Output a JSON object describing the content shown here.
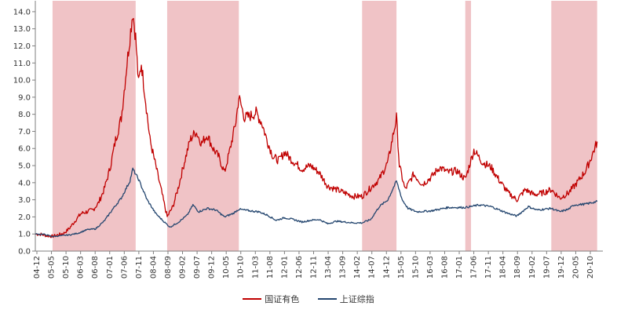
{
  "chart_data": {
    "type": "line",
    "title": "",
    "xlabel": "",
    "ylabel": "",
    "ylim": [
      0,
      14.5
    ],
    "yticks": [
      0.0,
      1.0,
      2.0,
      3.0,
      4.0,
      5.0,
      6.0,
      7.0,
      8.0,
      9.0,
      10.0,
      11.0,
      12.0,
      13.0,
      14.0
    ],
    "ytick_labels": [
      "0.0",
      "1.0",
      "2.0",
      "3.0",
      "4.0",
      "5.0",
      "6.0",
      "7.0",
      "8.0",
      "9.0",
      "10.0",
      "11.0",
      "12.0",
      "13.0",
      "14.0"
    ],
    "xlim": [
      "2004-12",
      "2021-06"
    ],
    "xtick_labels": [
      "04-12",
      "05-05",
      "05-10",
      "06-03",
      "06-08",
      "07-01",
      "07-06",
      "07-11",
      "08-04",
      "08-09",
      "09-02",
      "09-07",
      "09-12",
      "10-05",
      "10-10",
      "11-03",
      "11-08",
      "12-01",
      "12-06",
      "12-11",
      "13-04",
      "13-09",
      "14-02",
      "14-07",
      "14-12",
      "15-05",
      "15-10",
      "16-03",
      "16-08",
      "17-01",
      "17-06",
      "17-11",
      "18-04",
      "18-09",
      "19-02",
      "19-07",
      "19-12",
      "20-05",
      "20-10"
    ],
    "legend_position": "bottom",
    "grid": false,
    "shaded_periods": [
      {
        "start": "2005-06",
        "end": "2007-11"
      },
      {
        "start": "2008-10",
        "end": "2010-11"
      },
      {
        "start": "2014-06",
        "end": "2015-06"
      },
      {
        "start": "2017-06",
        "end": "2017-08"
      },
      {
        "start": "2019-12",
        "end": "2021-04"
      }
    ],
    "series": [
      {
        "name": "国证有色",
        "color": "#c00000",
        "points": [
          [
            "2004-12",
            1.0
          ],
          [
            "2005-02",
            0.98
          ],
          [
            "2005-04",
            0.9
          ],
          [
            "2005-06",
            0.86
          ],
          [
            "2005-08",
            0.95
          ],
          [
            "2005-10",
            1.05
          ],
          [
            "2005-12",
            1.35
          ],
          [
            "2006-02",
            1.8
          ],
          [
            "2006-04",
            2.2
          ],
          [
            "2006-06",
            2.3
          ],
          [
            "2006-08",
            2.4
          ],
          [
            "2006-10",
            2.8
          ],
          [
            "2006-12",
            3.6
          ],
          [
            "2007-02",
            4.8
          ],
          [
            "2007-04",
            6.5
          ],
          [
            "2007-06",
            7.8
          ],
          [
            "2007-08",
            11.0
          ],
          [
            "2007-10",
            14.0
          ],
          [
            "2007-11",
            12.5
          ],
          [
            "2007-12",
            9.8
          ],
          [
            "2008-01",
            11.0
          ],
          [
            "2008-02",
            9.5
          ],
          [
            "2008-03",
            8.0
          ],
          [
            "2008-04",
            6.5
          ],
          [
            "2008-06",
            5.0
          ],
          [
            "2008-08",
            3.5
          ],
          [
            "2008-10",
            2.0
          ],
          [
            "2008-12",
            2.6
          ],
          [
            "2009-02",
            3.8
          ],
          [
            "2009-04",
            5.2
          ],
          [
            "2009-06",
            6.5
          ],
          [
            "2009-08",
            7.0
          ],
          [
            "2009-10",
            6.3
          ],
          [
            "2009-12",
            6.8
          ],
          [
            "2010-02",
            6.0
          ],
          [
            "2010-04",
            5.5
          ],
          [
            "2010-06",
            4.6
          ],
          [
            "2010-08",
            6.0
          ],
          [
            "2010-10",
            7.6
          ],
          [
            "2010-11",
            9.0
          ],
          [
            "2011-01",
            7.8
          ],
          [
            "2011-03",
            7.9
          ],
          [
            "2011-05",
            8.1
          ],
          [
            "2011-07",
            7.5
          ],
          [
            "2011-09",
            6.4
          ],
          [
            "2011-11",
            5.5
          ],
          [
            "2012-01",
            5.3
          ],
          [
            "2012-03",
            5.8
          ],
          [
            "2012-05",
            5.4
          ],
          [
            "2012-07",
            5.1
          ],
          [
            "2012-09",
            4.8
          ],
          [
            "2012-12",
            5.0
          ],
          [
            "2013-03",
            4.6
          ],
          [
            "2013-06",
            3.8
          ],
          [
            "2013-09",
            3.6
          ],
          [
            "2013-12",
            3.4
          ],
          [
            "2014-03",
            3.2
          ],
          [
            "2014-06",
            3.2
          ],
          [
            "2014-09",
            3.7
          ],
          [
            "2014-12",
            4.2
          ],
          [
            "2015-03",
            5.2
          ],
          [
            "2015-06",
            7.8
          ],
          [
            "2015-07",
            5.0
          ],
          [
            "2015-09",
            3.6
          ],
          [
            "2015-12",
            4.5
          ],
          [
            "2016-03",
            3.9
          ],
          [
            "2016-06",
            4.3
          ],
          [
            "2016-09",
            4.9
          ],
          [
            "2016-12",
            4.6
          ],
          [
            "2017-03",
            4.7
          ],
          [
            "2017-06",
            4.2
          ],
          [
            "2017-09",
            5.9
          ],
          [
            "2017-12",
            5.2
          ],
          [
            "2018-03",
            4.9
          ],
          [
            "2018-06",
            4.1
          ],
          [
            "2018-09",
            3.4
          ],
          [
            "2018-12",
            3.0
          ],
          [
            "2019-03",
            3.6
          ],
          [
            "2019-06",
            3.3
          ],
          [
            "2019-09",
            3.4
          ],
          [
            "2019-12",
            3.6
          ],
          [
            "2020-03",
            3.1
          ],
          [
            "2020-06",
            3.4
          ],
          [
            "2020-09",
            4.0
          ],
          [
            "2020-12",
            4.7
          ],
          [
            "2021-02",
            5.5
          ],
          [
            "2021-04",
            6.4
          ]
        ]
      },
      {
        "name": "上证综指",
        "color": "#24466f",
        "points": [
          [
            "2004-12",
            1.0
          ],
          [
            "2005-03",
            0.98
          ],
          [
            "2005-06",
            0.85
          ],
          [
            "2005-09",
            0.9
          ],
          [
            "2005-12",
            0.95
          ],
          [
            "2006-03",
            1.05
          ],
          [
            "2006-06",
            1.25
          ],
          [
            "2006-09",
            1.3
          ],
          [
            "2006-12",
            1.75
          ],
          [
            "2007-03",
            2.45
          ],
          [
            "2007-06",
            3.1
          ],
          [
            "2007-09",
            4.1
          ],
          [
            "2007-10",
            4.8
          ],
          [
            "2007-12",
            4.2
          ],
          [
            "2008-03",
            3.0
          ],
          [
            "2008-06",
            2.2
          ],
          [
            "2008-09",
            1.7
          ],
          [
            "2008-11",
            1.4
          ],
          [
            "2009-02",
            1.7
          ],
          [
            "2009-05",
            2.1
          ],
          [
            "2009-07",
            2.7
          ],
          [
            "2009-09",
            2.3
          ],
          [
            "2009-12",
            2.5
          ],
          [
            "2010-03",
            2.4
          ],
          [
            "2010-06",
            2.0
          ],
          [
            "2010-09",
            2.2
          ],
          [
            "2010-11",
            2.45
          ],
          [
            "2011-03",
            2.35
          ],
          [
            "2011-06",
            2.3
          ],
          [
            "2011-09",
            2.1
          ],
          [
            "2011-12",
            1.8
          ],
          [
            "2012-03",
            1.95
          ],
          [
            "2012-06",
            1.85
          ],
          [
            "2012-09",
            1.7
          ],
          [
            "2012-12",
            1.8
          ],
          [
            "2013-03",
            1.85
          ],
          [
            "2013-06",
            1.6
          ],
          [
            "2013-09",
            1.75
          ],
          [
            "2013-12",
            1.7
          ],
          [
            "2014-03",
            1.65
          ],
          [
            "2014-06",
            1.65
          ],
          [
            "2014-09",
            1.85
          ],
          [
            "2014-12",
            2.6
          ],
          [
            "2015-03",
            3.0
          ],
          [
            "2015-06",
            4.1
          ],
          [
            "2015-08",
            3.0
          ],
          [
            "2015-10",
            2.5
          ],
          [
            "2016-01",
            2.3
          ],
          [
            "2016-06",
            2.35
          ],
          [
            "2016-12",
            2.55
          ],
          [
            "2017-06",
            2.55
          ],
          [
            "2017-11",
            2.7
          ],
          [
            "2018-03",
            2.6
          ],
          [
            "2018-06",
            2.4
          ],
          [
            "2018-09",
            2.2
          ],
          [
            "2018-12",
            2.05
          ],
          [
            "2019-04",
            2.6
          ],
          [
            "2019-07",
            2.4
          ],
          [
            "2019-12",
            2.5
          ],
          [
            "2020-03",
            2.3
          ],
          [
            "2020-06",
            2.45
          ],
          [
            "2020-08",
            2.7
          ],
          [
            "2020-12",
            2.75
          ],
          [
            "2021-04",
            2.9
          ]
        ]
      }
    ]
  }
}
